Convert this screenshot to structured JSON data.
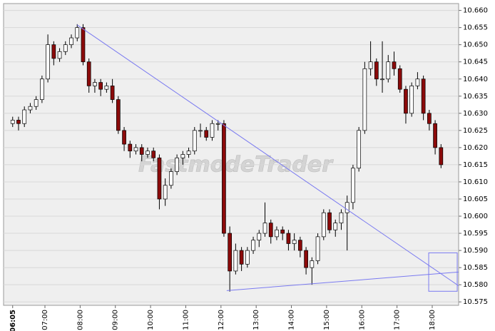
{
  "chart_data": {
    "type": "candlestick",
    "watermark": "FastmodeTrader",
    "xlim": [
      349.5,
      1125
    ],
    "ylim": [
      10.574,
      10.662
    ],
    "xticks": [
      {
        "value": 365,
        "label": "06:05"
      },
      {
        "value": 420,
        "label": "07:00"
      },
      {
        "value": 480,
        "label": "08:00"
      },
      {
        "value": 540,
        "label": "09:00"
      },
      {
        "value": 600,
        "label": "10:00"
      },
      {
        "value": 660,
        "label": "11:00"
      },
      {
        "value": 720,
        "label": "12:00"
      },
      {
        "value": 780,
        "label": "13:00"
      },
      {
        "value": 840,
        "label": "14:00"
      },
      {
        "value": 900,
        "label": "15:00"
      },
      {
        "value": 960,
        "label": "16:00"
      },
      {
        "value": 1020,
        "label": "17:00"
      },
      {
        "value": 1080,
        "label": "18:00"
      }
    ],
    "yticks": [
      10.575,
      {
        "value": 10.58,
        "label": "10.580"
      },
      10.585,
      {
        "value": 10.59,
        "label": "10.590"
      },
      10.595,
      {
        "value": 10.6,
        "label": "10.600"
      },
      10.605,
      {
        "value": 10.61,
        "label": "10.610"
      },
      10.615,
      {
        "value": 10.62,
        "label": "10.620"
      },
      10.625,
      {
        "value": 10.63,
        "label": "10.630"
      },
      10.635,
      {
        "value": 10.64,
        "label": "10.640"
      },
      10.645,
      {
        "value": 10.65,
        "label": "10.650"
      },
      10.655,
      {
        "value": 10.66,
        "label": "10.660"
      }
    ],
    "grid": true,
    "up_color": "#ffffff",
    "down_color": "#8b0a0a",
    "x": [
      365,
      375,
      385,
      395,
      405,
      415,
      425,
      435,
      445,
      455,
      465,
      475,
      485,
      495,
      505,
      515,
      525,
      535,
      545,
      555,
      565,
      575,
      585,
      595,
      605,
      615,
      625,
      635,
      645,
      655,
      665,
      675,
      685,
      695,
      705,
      715,
      725,
      735,
      745,
      755,
      765,
      775,
      785,
      795,
      805,
      815,
      825,
      835,
      845,
      855,
      865,
      875,
      885,
      895,
      905,
      915,
      925,
      935,
      945,
      955,
      965,
      975,
      985,
      995,
      1005,
      1015,
      1025,
      1035,
      1045,
      1055,
      1065,
      1075,
      1085,
      1095
    ],
    "open": [
      10.627,
      10.628,
      10.627,
      10.631,
      10.632,
      10.634,
      10.64,
      10.65,
      10.646,
      10.648,
      10.65,
      10.652,
      10.655,
      10.645,
      10.638,
      10.639,
      10.637,
      10.638,
      10.634,
      10.625,
      10.621,
      10.619,
      10.62,
      10.618,
      10.619,
      10.617,
      10.605,
      10.609,
      10.613,
      10.617,
      10.618,
      10.619,
      10.625,
      10.625,
      10.623,
      10.627,
      10.627,
      10.595,
      10.584,
      10.59,
      10.586,
      10.59,
      10.593,
      10.595,
      10.598,
      10.594,
      10.596,
      10.595,
      10.592,
      10.593,
      10.59,
      10.585,
      10.587,
      10.594,
      10.601,
      10.596,
      10.598,
      10.601,
      10.604,
      10.614,
      10.625,
      10.643,
      10.645,
      10.64,
      10.64,
      10.645,
      10.643,
      10.637,
      10.63,
      10.638,
      10.64,
      10.63,
      10.627,
      10.62
    ],
    "high": [
      10.629,
      10.629,
      10.632,
      10.633,
      10.635,
      10.641,
      10.653,
      10.651,
      10.649,
      10.651,
      10.653,
      10.656,
      10.656,
      10.646,
      10.64,
      10.64,
      10.639,
      10.64,
      10.635,
      10.626,
      10.622,
      10.621,
      10.621,
      10.62,
      10.62,
      10.618,
      10.611,
      10.614,
      10.618,
      10.619,
      10.62,
      10.626,
      10.627,
      10.626,
      10.628,
      10.628,
      10.628,
      10.597,
      10.592,
      10.591,
      10.591,
      10.594,
      10.596,
      10.604,
      10.599,
      10.597,
      10.597,
      10.596,
      10.595,
      10.594,
      10.591,
      10.588,
      10.595,
      10.602,
      10.602,
      10.599,
      10.602,
      10.606,
      10.615,
      10.626,
      10.645,
      10.651,
      10.646,
      10.651,
      10.647,
      10.648,
      10.644,
      10.638,
      10.639,
      10.642,
      10.641,
      10.631,
      10.628,
      10.621
    ],
    "low": [
      10.626,
      10.625,
      10.626,
      10.63,
      10.631,
      10.633,
      10.639,
      10.644,
      10.645,
      10.647,
      10.649,
      10.651,
      10.644,
      10.636,
      10.636,
      10.635,
      10.636,
      10.633,
      10.624,
      10.619,
      10.617,
      10.618,
      10.616,
      10.617,
      10.616,
      10.602,
      10.603,
      10.608,
      10.612,
      10.615,
      10.617,
      10.618,
      10.623,
      10.622,
      10.622,
      10.625,
      10.594,
      10.578,
      10.583,
      10.584,
      10.585,
      10.589,
      10.591,
      10.594,
      10.592,
      10.593,
      10.593,
      10.59,
      10.59,
      10.588,
      10.583,
      10.58,
      10.586,
      10.593,
      10.595,
      10.594,
      10.596,
      10.59,
      10.602,
      10.613,
      10.624,
      10.641,
      10.638,
      10.636,
      10.639,
      10.641,
      10.636,
      10.627,
      10.629,
      10.637,
      10.628,
      10.625,
      10.618,
      10.614
    ],
    "close": [
      10.628,
      10.627,
      10.631,
      10.632,
      10.634,
      10.64,
      10.65,
      10.646,
      10.648,
      10.65,
      10.652,
      10.655,
      10.645,
      10.638,
      10.639,
      10.637,
      10.638,
      10.634,
      10.625,
      10.621,
      10.619,
      10.62,
      10.618,
      10.619,
      10.617,
      10.605,
      10.609,
      10.613,
      10.617,
      10.618,
      10.619,
      10.625,
      10.625,
      10.623,
      10.627,
      10.627,
      10.595,
      10.584,
      10.59,
      10.586,
      10.59,
      10.593,
      10.595,
      10.598,
      10.594,
      10.596,
      10.595,
      10.592,
      10.593,
      10.59,
      10.585,
      10.587,
      10.594,
      10.601,
      10.596,
      10.598,
      10.601,
      10.604,
      10.614,
      10.625,
      10.643,
      10.645,
      10.64,
      10.64,
      10.645,
      10.643,
      10.637,
      10.63,
      10.638,
      10.64,
      10.63,
      10.627,
      10.62,
      10.615
    ],
    "trend_lines": [
      {
        "color": "#7a7af0",
        "x": [
          474.7,
          1125
        ],
        "y": [
          10.6558,
          10.5797
        ]
      },
      {
        "color": "#7a7af0",
        "x": [
          729.8,
          1125
        ],
        "y": [
          10.5783,
          10.5837
        ]
      }
    ],
    "boxes": [
      {
        "color": "#7a7af0",
        "x": [
          1074,
          1122.6
        ],
        "y": [
          10.5781,
          10.5893
        ]
      }
    ]
  }
}
